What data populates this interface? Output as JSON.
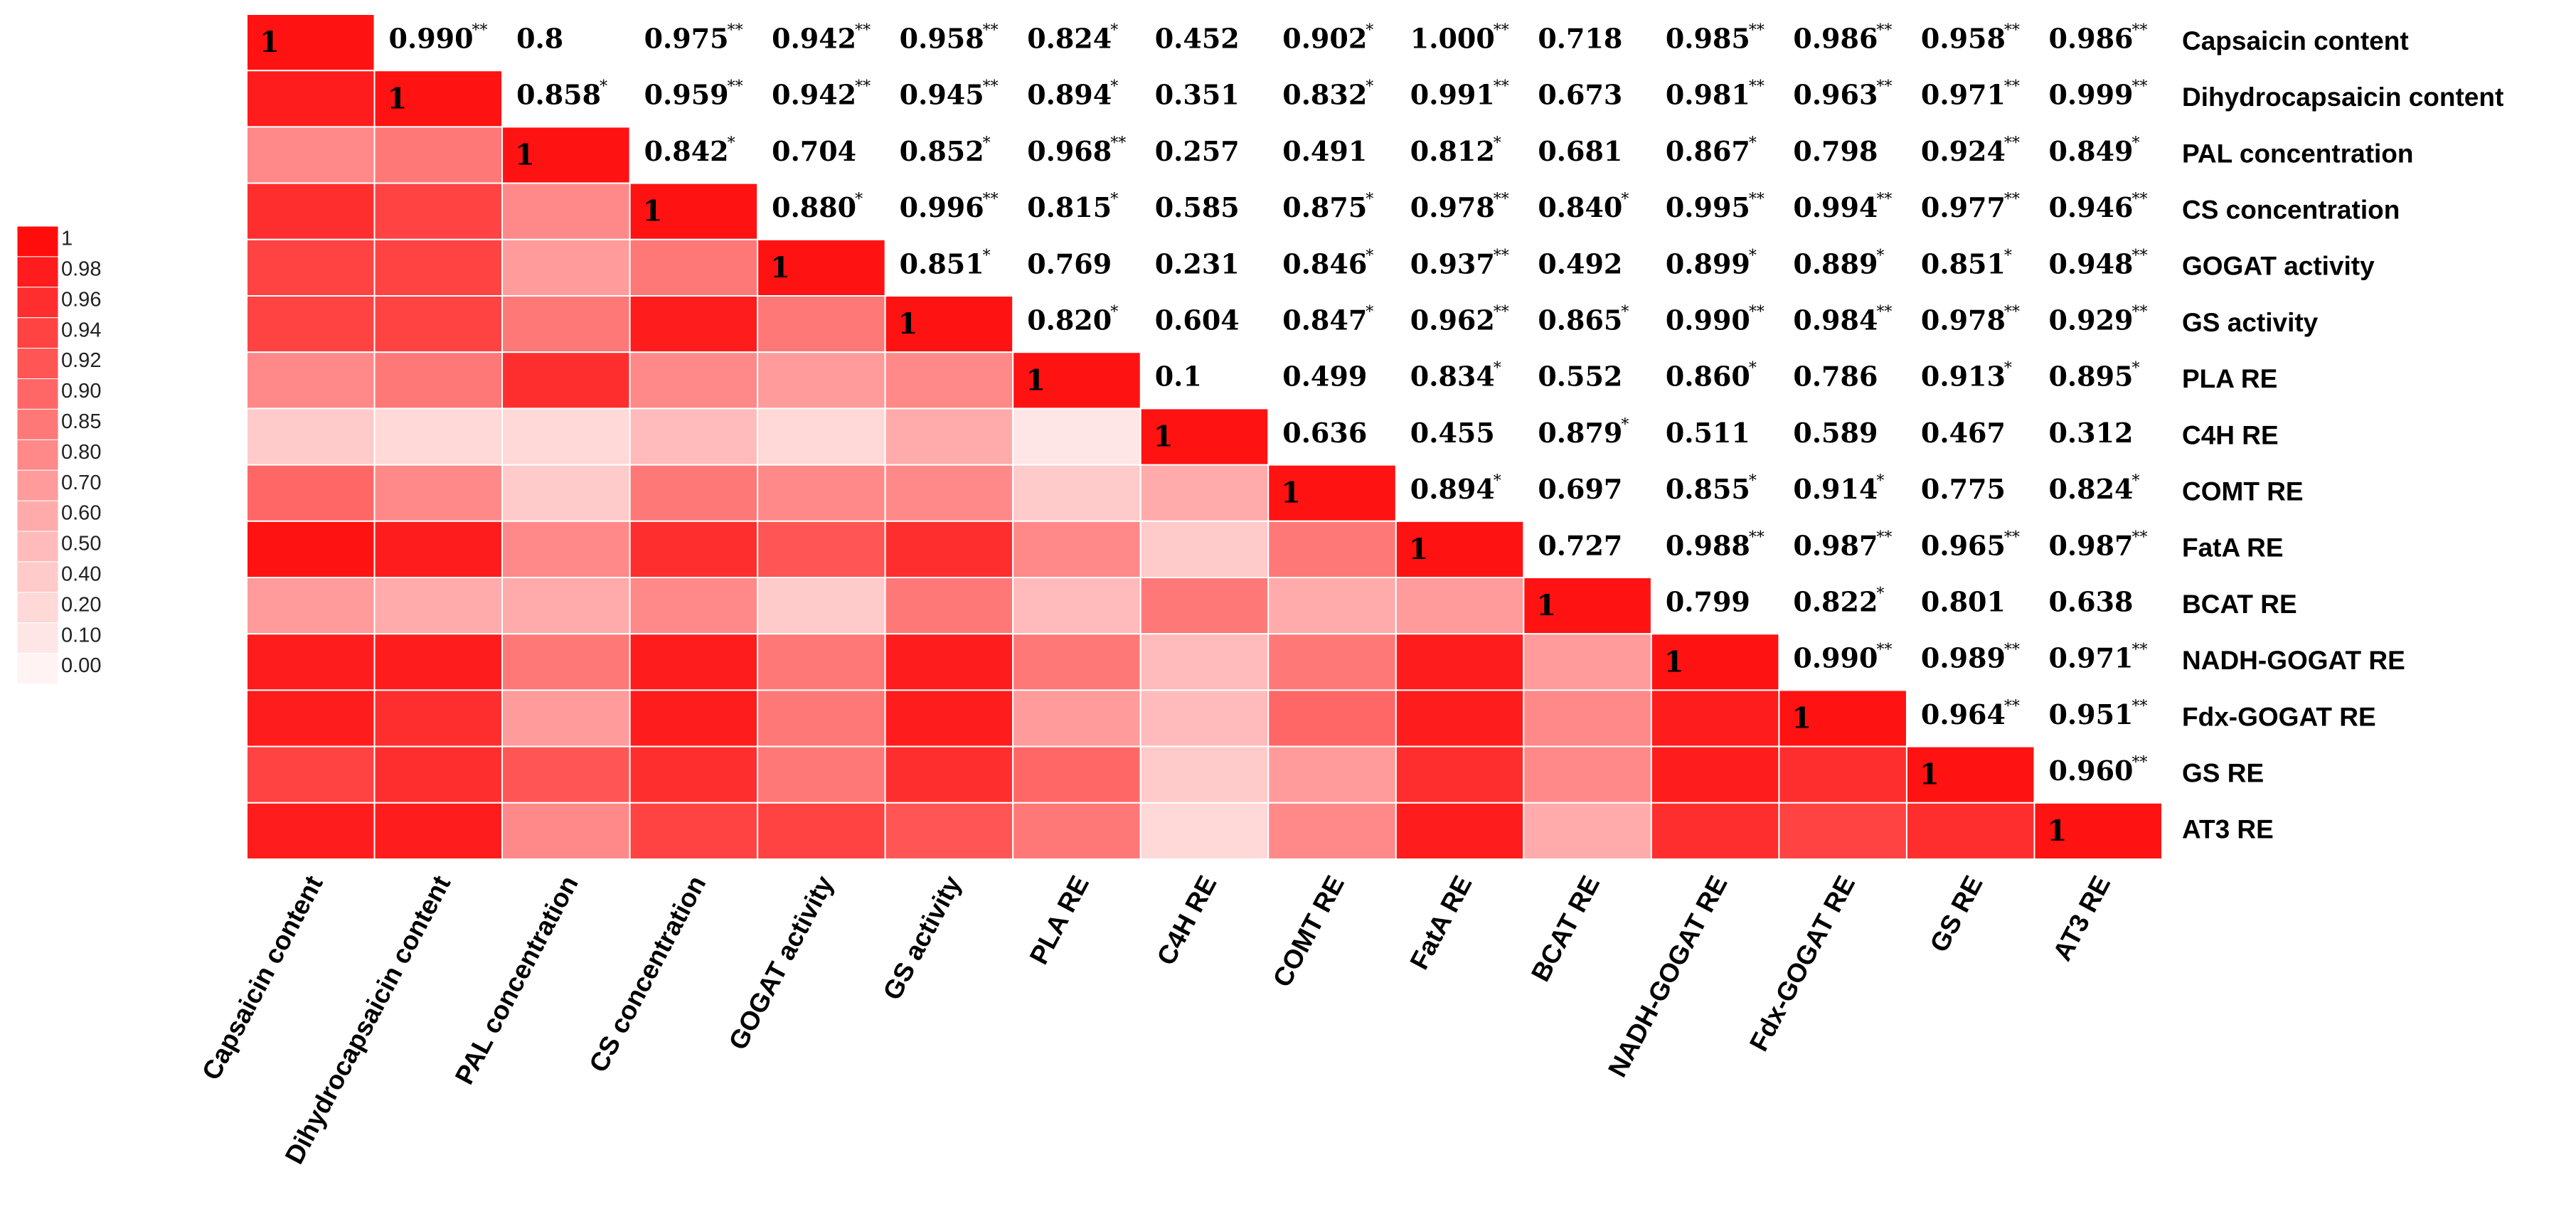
{
  "chart_data": {
    "type": "heatmap",
    "title": "",
    "variables": [
      "Capsaicin content",
      "Dihydrocapsaicin content",
      "PAL concentration",
      "CS concentration",
      "GOGAT activity",
      "GS activity",
      "PLA  RE",
      "C4H  RE",
      "COMT RE",
      "FatA RE",
      "BCAT RE",
      "NADH-GOGAT RE",
      "Fdx-GOGAT RE",
      "GS RE",
      "AT3 RE"
    ],
    "upper_values": [
      [
        "1",
        "0.990",
        "0.8",
        "0.975",
        "0.942",
        "0.958",
        "0.824",
        "0.452",
        "0.902",
        "1.000",
        "0.718",
        "0.985",
        "0.986",
        "0.958",
        "0.986"
      ],
      [
        null,
        "1",
        "0.858",
        "0.959",
        "0.942",
        "0.945",
        "0.894",
        "0.351",
        "0.832",
        "0.991",
        "0.673",
        "0.981",
        "0.963",
        "0.971",
        "0.999"
      ],
      [
        null,
        null,
        "1",
        "0.842",
        "0.704",
        "0.852",
        "0.968",
        "0.257",
        "0.491",
        "0.812",
        "0.681",
        "0.867",
        "0.798",
        "0.924",
        "0.849"
      ],
      [
        null,
        null,
        null,
        "1",
        "0.880",
        "0.996",
        "0.815",
        "0.585",
        "0.875",
        "0.978",
        "0.840",
        "0.995",
        "0.994",
        "0.977",
        "0.946"
      ],
      [
        null,
        null,
        null,
        null,
        "1",
        "0.851",
        "0.769",
        "0.231",
        "0.846",
        "0.937",
        "0.492",
        "0.899",
        "0.889",
        "0.851",
        "0.948"
      ],
      [
        null,
        null,
        null,
        null,
        null,
        "1",
        "0.820",
        "0.604",
        "0.847",
        "0.962",
        "0.865",
        "0.990",
        "0.984",
        "0.978",
        "0.929"
      ],
      [
        null,
        null,
        null,
        null,
        null,
        null,
        "1",
        "0.1",
        "0.499",
        "0.834",
        "0.552",
        "0.860",
        "0.786",
        "0.913",
        "0.895"
      ],
      [
        null,
        null,
        null,
        null,
        null,
        null,
        null,
        "1",
        "0.636",
        "0.455",
        "0.879",
        "0.511",
        "0.589",
        "0.467",
        "0.312"
      ],
      [
        null,
        null,
        null,
        null,
        null,
        null,
        null,
        null,
        "1",
        "0.894",
        "0.697",
        "0.855",
        "0.914",
        "0.775",
        "0.824"
      ],
      [
        null,
        null,
        null,
        null,
        null,
        null,
        null,
        null,
        null,
        "1",
        "0.727",
        "0.988",
        "0.987",
        "0.965",
        "0.987"
      ],
      [
        null,
        null,
        null,
        null,
        null,
        null,
        null,
        null,
        null,
        null,
        "1",
        "0.799",
        "0.822",
        "0.801",
        "0.638"
      ],
      [
        null,
        null,
        null,
        null,
        null,
        null,
        null,
        null,
        null,
        null,
        null,
        "1",
        "0.990",
        "0.989",
        "0.971"
      ],
      [
        null,
        null,
        null,
        null,
        null,
        null,
        null,
        null,
        null,
        null,
        null,
        null,
        "1",
        "0.964",
        "0.951"
      ],
      [
        null,
        null,
        null,
        null,
        null,
        null,
        null,
        null,
        null,
        null,
        null,
        null,
        null,
        "1",
        "0.960"
      ],
      [
        null,
        null,
        null,
        null,
        null,
        null,
        null,
        null,
        null,
        null,
        null,
        null,
        null,
        null,
        "1"
      ]
    ],
    "significance": [
      [
        "",
        "**",
        "",
        "**",
        "**",
        "**",
        "*",
        "",
        "*",
        "**",
        "",
        "**",
        "**",
        "**",
        "**"
      ],
      [
        "",
        "",
        "*",
        "**",
        "**",
        "**",
        "*",
        "",
        "*",
        "**",
        "",
        "**",
        "**",
        "**",
        "**"
      ],
      [
        "",
        "",
        "",
        "*",
        "",
        "*",
        "**",
        "",
        "",
        "*",
        "",
        "*",
        "",
        "**",
        "*"
      ],
      [
        "",
        "",
        "",
        "",
        "*",
        "**",
        "*",
        "",
        "*",
        "**",
        "*",
        "**",
        "**",
        "**",
        "**"
      ],
      [
        "",
        "",
        "",
        "",
        "",
        "*",
        "",
        "",
        "*",
        "**",
        "",
        "*",
        "*",
        "*",
        "**"
      ],
      [
        "",
        "",
        "",
        "",
        "",
        "",
        "*",
        "",
        "*",
        "**",
        "*",
        "**",
        "**",
        "**",
        "**"
      ],
      [
        "",
        "",
        "",
        "",
        "",
        "",
        "",
        "",
        "",
        "*",
        "",
        "*",
        "",
        "*",
        "*"
      ],
      [
        "",
        "",
        "",
        "",
        "",
        "",
        "",
        "",
        "",
        "",
        "*",
        "",
        "",
        "",
        ""
      ],
      [
        "",
        "",
        "",
        "",
        "",
        "",
        "",
        "",
        "",
        "*",
        "",
        "*",
        "*",
        "",
        "*"
      ],
      [
        "",
        "",
        "",
        "",
        "",
        "",
        "",
        "",
        "",
        "",
        "",
        "**",
        "**",
        "**",
        "**"
      ],
      [
        "",
        "",
        "",
        "",
        "",
        "",
        "",
        "",
        "",
        "",
        "",
        "",
        "*",
        "",
        ""
      ],
      [
        "",
        "",
        "",
        "",
        "",
        "",
        "",
        "",
        "",
        "",
        "",
        "",
        "**",
        "**",
        "**"
      ],
      [
        "",
        "",
        "",
        "",
        "",
        "",
        "",
        "",
        "",
        "",
        "",
        "",
        "",
        "**",
        "**"
      ],
      [
        "",
        "",
        "",
        "",
        "",
        "",
        "",
        "",
        "",
        "",
        "",
        "",
        "",
        "",
        "**"
      ],
      [
        "",
        "",
        "",
        "",
        "",
        "",
        "",
        "",
        "",
        "",
        "",
        "",
        "",
        "",
        ""
      ]
    ],
    "legend": {
      "ticks": [
        "1",
        "0.98",
        "0.96",
        "0.94",
        "0.92",
        "0.90",
        "0.85",
        "0.80",
        "0.70",
        "0.60",
        "0.50",
        "0.40",
        "0.20",
        "0.10",
        "0.00"
      ],
      "colors": [
        "#ff0d0d",
        "#ff1c1c",
        "#ff2e2e",
        "#ff4242",
        "#ff5555",
        "#ff6767",
        "#ff7878",
        "#ff8989",
        "#ff9b9b",
        "#ffabab",
        "#ffbbbb",
        "#ffcaca",
        "#ffd8d8",
        "#ffe6e6",
        "#fff3f3"
      ]
    },
    "diagonal_color": "#ff1212"
  }
}
